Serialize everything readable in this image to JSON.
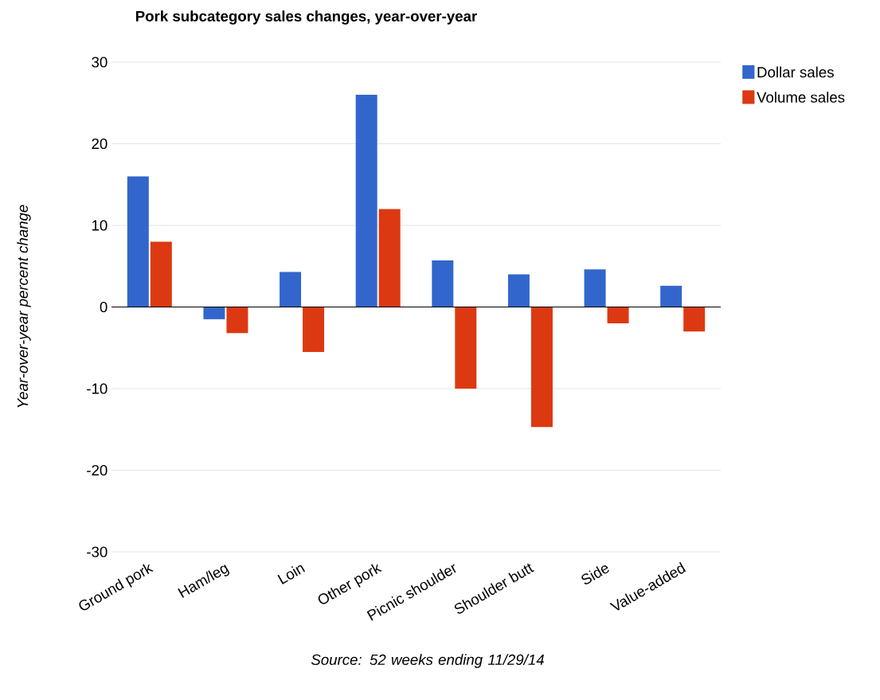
{
  "chart_data": {
    "type": "bar",
    "title": "Pork subcategory sales changes, year-over-year",
    "ylabel": "Year-over-year percent change",
    "annotations": [
      "Source: 52 weeks ending 11/29/14"
    ],
    "categories": [
      "Ground pork",
      "Ham/leg",
      "Loin",
      "Other pork",
      "Picnic shoulder",
      "Shoulder butt",
      "Side",
      "Value-added"
    ],
    "series": [
      {
        "name": "Dollar sales",
        "color": "#3366cc",
        "values": [
          16,
          -1.5,
          4.3,
          26,
          5.7,
          4,
          4.6,
          2.6
        ]
      },
      {
        "name": "Volume sales",
        "color": "#dc3912",
        "values": [
          8,
          -3.2,
          -5.5,
          12,
          -10,
          -14.7,
          -2,
          -3
        ]
      }
    ],
    "ylim": [
      -30,
      30
    ],
    "yticks": [
      -30,
      -20,
      -10,
      0,
      10,
      20,
      30
    ],
    "grid": "y",
    "legend": "top right"
  }
}
